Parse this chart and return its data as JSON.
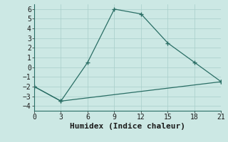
{
  "line1_x": [
    0,
    3,
    6,
    9,
    12,
    15,
    18,
    21
  ],
  "line1_y": [
    -2,
    -3.5,
    0.5,
    6,
    5.5,
    2.5,
    0.5,
    -1.5
  ],
  "line2_x": [
    0,
    3,
    21
  ],
  "line2_y": [
    -2,
    -3.5,
    -1.5
  ],
  "color": "#2e7d6e",
  "xlabel": "Humidex (Indice chaleur)",
  "xlim": [
    0,
    21
  ],
  "ylim": [
    -4.5,
    6.5
  ],
  "xticks": [
    0,
    3,
    6,
    9,
    12,
    15,
    18,
    21
  ],
  "yticks": [
    -4,
    -3,
    -2,
    -1,
    0,
    1,
    2,
    3,
    4,
    5,
    6
  ],
  "bg_color": "#cce8e4",
  "grid_color": "#b0d8d2",
  "line_color": "#2a6e65",
  "tick_fontsize": 7,
  "label_fontsize": 8
}
